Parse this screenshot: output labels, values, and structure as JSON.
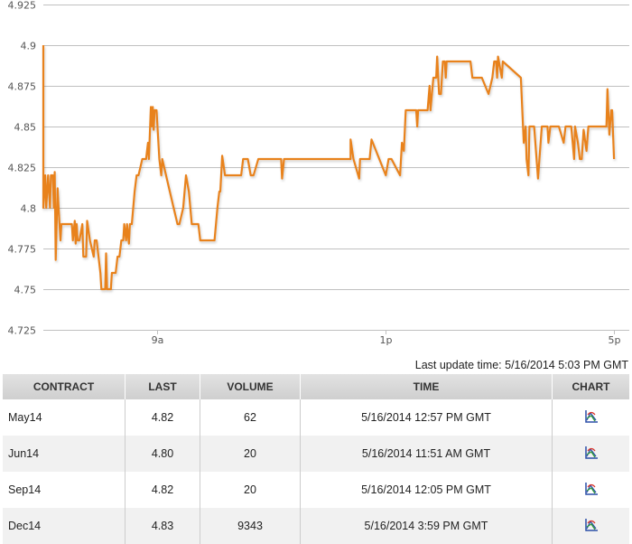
{
  "chart_data": {
    "type": "line",
    "title": "",
    "xlabel": "",
    "ylabel": "",
    "x_unit": "minutes after 7:00 AM",
    "xlim": [
      0,
      616
    ],
    "ylim": [
      4.725,
      4.925
    ],
    "yticks": [
      "4.925",
      "4.9",
      "4.875",
      "4.85",
      "4.825",
      "4.8",
      "4.775",
      "4.75",
      "4.725"
    ],
    "ytick_values": [
      4.925,
      4.9,
      4.875,
      4.85,
      4.825,
      4.8,
      4.775,
      4.75,
      4.725
    ],
    "xticks": [
      {
        "label": "9a",
        "value": 120
      },
      {
        "label": "1p",
        "value": 360
      },
      {
        "label": "5p",
        "value": 600
      }
    ],
    "grid": true,
    "series": [
      {
        "name": "price",
        "color": "#e8821e",
        "x": [
          0,
          0,
          2,
          3,
          5,
          7,
          8,
          10,
          11,
          12,
          13,
          15,
          16,
          18,
          19,
          30,
          31,
          33,
          34,
          35,
          36,
          38,
          41,
          42,
          45,
          46,
          49,
          53,
          54,
          56,
          60,
          61,
          65,
          66,
          67,
          71,
          72,
          76,
          78,
          80,
          82,
          84,
          85,
          87,
          88,
          90,
          91,
          93,
          96,
          98,
          100,
          104,
          108,
          110,
          111,
          113,
          114,
          115,
          116,
          117,
          119,
          120,
          122,
          124,
          125,
          131,
          137,
          141,
          143,
          147,
          150,
          153,
          156,
          163,
          165,
          180,
          183,
          185,
          186,
          188,
          191,
          208,
          210,
          215,
          218,
          221,
          226,
          250,
          251,
          253,
          323,
          323,
          326,
          332,
          333,
          343,
          345,
          360,
          363,
          366,
          375,
          377,
          379,
          381,
          392,
          393,
          394,
          404,
          406,
          407,
          410,
          413,
          414,
          416,
          418,
          420,
          422,
          423,
          424,
          449,
          451,
          461,
          468,
          472,
          474,
          476,
          477,
          478,
          482,
          483,
          502,
          505,
          507,
          508,
          510,
          511,
          516,
          520,
          524,
          530,
          531,
          533,
          539,
          542,
          547,
          549,
          555,
          558,
          559,
          562,
          564,
          566,
          568,
          571,
          573,
          592,
          593,
          595,
          597,
          598,
          600
        ],
        "y": [
          4.9,
          4.8,
          4.82,
          4.8,
          4.82,
          4.8,
          4.82,
          4.82,
          4.8,
          4.822,
          4.768,
          4.812,
          4.8,
          4.78,
          4.79,
          4.79,
          4.78,
          4.792,
          4.778,
          4.79,
          4.78,
          4.78,
          4.79,
          4.77,
          4.77,
          4.792,
          4.78,
          4.77,
          4.78,
          4.78,
          4.76,
          4.75,
          4.75,
          4.772,
          4.75,
          4.75,
          4.76,
          4.76,
          4.77,
          4.77,
          4.78,
          4.78,
          4.79,
          4.78,
          4.79,
          4.778,
          4.79,
          4.79,
          4.81,
          4.82,
          4.82,
          4.83,
          4.83,
          4.84,
          4.83,
          4.862,
          4.85,
          4.862,
          4.848,
          4.86,
          4.86,
          4.85,
          4.83,
          4.82,
          4.83,
          4.815,
          4.8,
          4.79,
          4.79,
          4.8,
          4.82,
          4.81,
          4.79,
          4.79,
          4.78,
          4.78,
          4.8,
          4.81,
          4.81,
          4.832,
          4.82,
          4.82,
          4.83,
          4.83,
          4.82,
          4.82,
          4.83,
          4.83,
          4.818,
          4.83,
          4.83,
          4.842,
          4.83,
          4.818,
          4.83,
          4.83,
          4.842,
          4.82,
          4.83,
          4.83,
          4.82,
          4.84,
          4.835,
          4.86,
          4.86,
          4.85,
          4.86,
          4.86,
          4.875,
          4.86,
          4.88,
          4.88,
          4.893,
          4.87,
          4.87,
          4.89,
          4.89,
          4.88,
          4.89,
          4.89,
          4.88,
          4.88,
          4.87,
          4.88,
          4.89,
          4.89,
          4.88,
          4.893,
          4.88,
          4.89,
          4.88,
          4.84,
          4.85,
          4.83,
          4.82,
          4.85,
          4.85,
          4.818,
          4.85,
          4.85,
          4.84,
          4.85,
          4.85,
          4.85,
          4.84,
          4.85,
          4.85,
          4.83,
          4.85,
          4.84,
          4.83,
          4.83,
          4.848,
          4.835,
          4.85,
          4.85,
          4.873,
          4.845,
          4.86,
          4.86,
          4.83
        ]
      }
    ]
  },
  "last_update": "Last update time: 5/16/2014 5:03 PM GMT",
  "table": {
    "headers": [
      "CONTRACT",
      "LAST",
      "VOLUME",
      "TIME",
      "CHART"
    ],
    "rows": [
      {
        "contract": "May14",
        "last": "4.82",
        "volume": "62",
        "time": "5/16/2014 12:57 PM GMT",
        "chart_icon": "chart-icon"
      },
      {
        "contract": "Jun14",
        "last": "4.80",
        "volume": "20",
        "time": "5/16/2014 11:51 AM GMT",
        "chart_icon": "chart-icon"
      },
      {
        "contract": "Sep14",
        "last": "4.82",
        "volume": "20",
        "time": "5/16/2014 12:05 PM GMT",
        "chart_icon": "chart-icon"
      },
      {
        "contract": "Dec14",
        "last": "4.83",
        "volume": "9343",
        "time": "5/16/2014 3:59 PM GMT",
        "chart_icon": "chart-icon"
      }
    ]
  }
}
